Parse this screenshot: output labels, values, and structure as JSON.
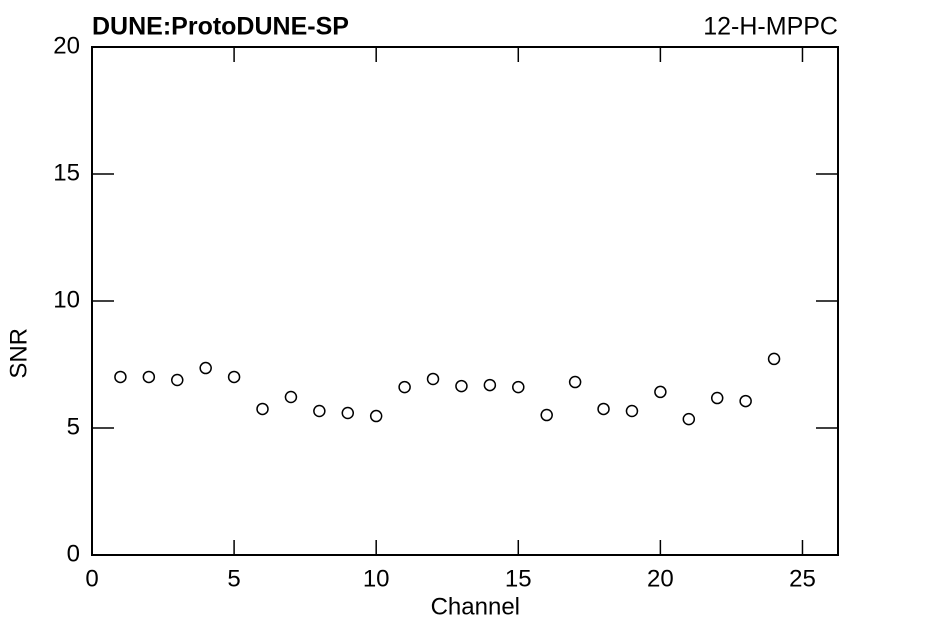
{
  "chart_data": {
    "type": "scatter",
    "title": "DUNE:ProtoDUNE-SP",
    "subtitle": "12-H-MPPC",
    "x_label": "Channel",
    "y_label": "SNR",
    "x": [
      1,
      2,
      3,
      4,
      5,
      6,
      7,
      8,
      9,
      10,
      11,
      12,
      13,
      14,
      15,
      16,
      17,
      18,
      19,
      20,
      21,
      22,
      23,
      24
    ],
    "values": [
      7.01,
      7.01,
      6.89,
      7.36,
      7.01,
      5.75,
      6.22,
      5.67,
      5.59,
      5.47,
      6.61,
      6.93,
      6.65,
      6.69,
      6.61,
      5.51,
      6.81,
      5.75,
      5.67,
      6.42,
      5.35,
      6.18,
      6.06,
      7.72
    ],
    "color": "#000000",
    "xlim": [
      0,
      26.25
    ],
    "xticks": [
      0,
      5,
      10,
      15,
      20,
      25
    ],
    "ylim": [
      0,
      20
    ],
    "yticks": [
      0,
      5,
      10,
      15,
      20
    ],
    "grid": false
  }
}
